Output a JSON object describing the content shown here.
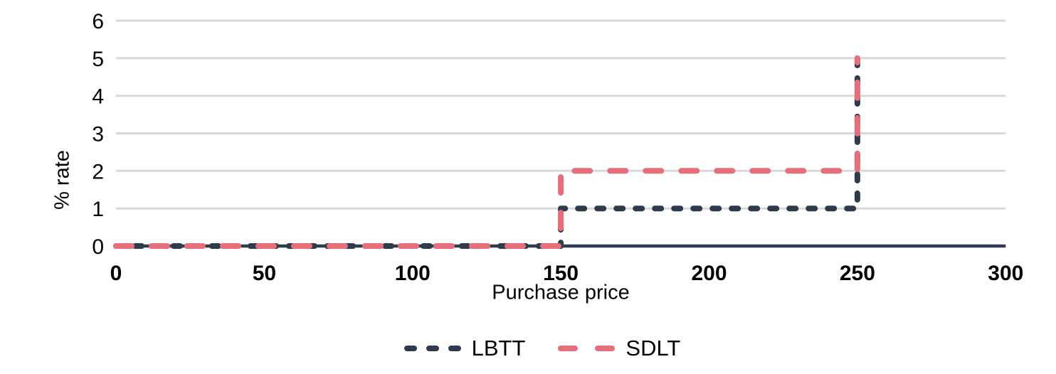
{
  "chart_data": {
    "type": "line",
    "subtype": "step",
    "title": "",
    "xlabel": "Purchase price",
    "ylabel": "% rate",
    "xlim": [
      0,
      300
    ],
    "ylim": [
      0,
      6
    ],
    "xticks": [
      0,
      50,
      100,
      150,
      200,
      250,
      300
    ],
    "yticks": [
      0,
      1,
      2,
      3,
      4,
      5,
      6
    ],
    "grid": "horizontal-only",
    "gridline_color": "#D9D9D9",
    "axis_line_color": "#2E3B4C",
    "background_color": "#FFFFFF",
    "legend_position": "bottom-center",
    "series": [
      {
        "name": "LBTT",
        "color": "#2E3B4C",
        "line_style": "dashed",
        "dash": [
          9,
          18
        ],
        "points": [
          [
            0,
            0
          ],
          [
            150,
            0
          ],
          [
            150,
            1
          ],
          [
            250,
            1
          ],
          [
            250,
            5
          ]
        ]
      },
      {
        "name": "SDLT",
        "color": "#E66F7B",
        "line_style": "dashed",
        "dash": [
          22,
          28
        ],
        "points": [
          [
            0,
            0
          ],
          [
            150,
            0
          ],
          [
            150,
            2
          ],
          [
            250,
            2
          ],
          [
            250,
            5
          ]
        ]
      }
    ]
  }
}
